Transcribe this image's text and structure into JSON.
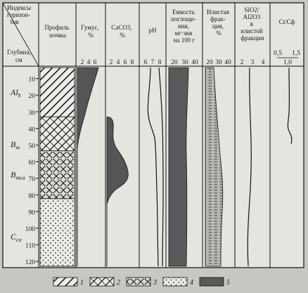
{
  "header": {
    "horizons": [
      "Индексы",
      "горизон-",
      "тов"
    ],
    "depth_label": [
      "Глубина,",
      "см"
    ],
    "profile": [
      "Профиль",
      "почвы"
    ],
    "humus": [
      "Гумус,",
      "%"
    ],
    "caco3": [
      "CaCO3,",
      "%"
    ],
    "ph": "pH",
    "capacity": [
      "Емкость",
      "поглоще-",
      "ния,",
      "мг·экв",
      "на 100 г"
    ],
    "silt": [
      "Илистая",
      "фрак-",
      "ция,",
      "%"
    ],
    "ratio": [
      "SiO2/",
      "Al2O3",
      "в",
      "илистой",
      "фракции"
    ],
    "ct": "Ct/Cф"
  },
  "axes": {
    "humus": [
      "2",
      "4",
      "6"
    ],
    "caco3": [
      "2",
      "4",
      "6",
      "8"
    ],
    "ph": [
      "6",
      "7",
      "8"
    ],
    "capacity": [
      "20",
      "30",
      "40"
    ],
    "silt": [
      "20",
      "30",
      "40"
    ],
    "ratio": [
      "2",
      "3",
      "4"
    ],
    "ct": [
      "0,5",
      "1,0",
      "1,5"
    ]
  },
  "depths": [
    "10",
    "20",
    "30",
    "40",
    "50",
    "60",
    "70",
    "80",
    "90",
    "100",
    "110",
    "120"
  ],
  "horizons": [
    {
      "base": "Al",
      "sub": "h"
    },
    {
      "base": "B",
      "sub": "m"
    },
    {
      "base": "B",
      "sub": "mca"
    },
    {
      "base": "C",
      "sub": "ca"
    }
  ],
  "legend": [
    "1",
    "2",
    "3",
    "4",
    "5"
  ]
}
